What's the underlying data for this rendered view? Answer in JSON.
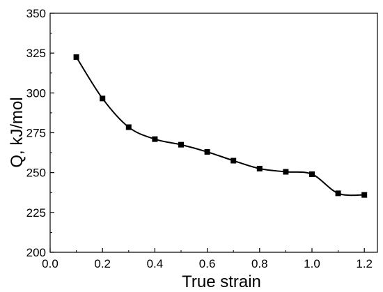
{
  "chart_data": {
    "type": "line",
    "title": "",
    "xlabel": "True strain",
    "ylabel": "Q,  kJ/mol",
    "xlim": [
      0.0,
      1.25
    ],
    "ylim": [
      200,
      350
    ],
    "xticks": [
      0.0,
      0.2,
      0.4,
      0.6,
      0.8,
      1.0,
      1.2
    ],
    "xtick_labels": [
      "0.0",
      "0.2",
      "0.4",
      "0.6",
      "0.8",
      "1.0",
      "1.2"
    ],
    "yticks": [
      200,
      225,
      250,
      275,
      300,
      325,
      350
    ],
    "ytick_labels": [
      "200",
      "225",
      "250",
      "275",
      "300",
      "325",
      "350"
    ],
    "grid": false,
    "legend": "none",
    "marker": "square",
    "line_style": "smooth",
    "series": [
      {
        "x": [
          0.1,
          0.2,
          0.3,
          0.4,
          0.5,
          0.6,
          0.7,
          0.8,
          0.9,
          1.0,
          1.1,
          1.2
        ],
        "y": [
          322.5,
          296.5,
          278.5,
          271.0,
          267.5,
          263.0,
          257.5,
          252.5,
          250.5,
          249.0,
          237.0,
          236.0
        ],
        "color": "#000000"
      }
    ]
  }
}
